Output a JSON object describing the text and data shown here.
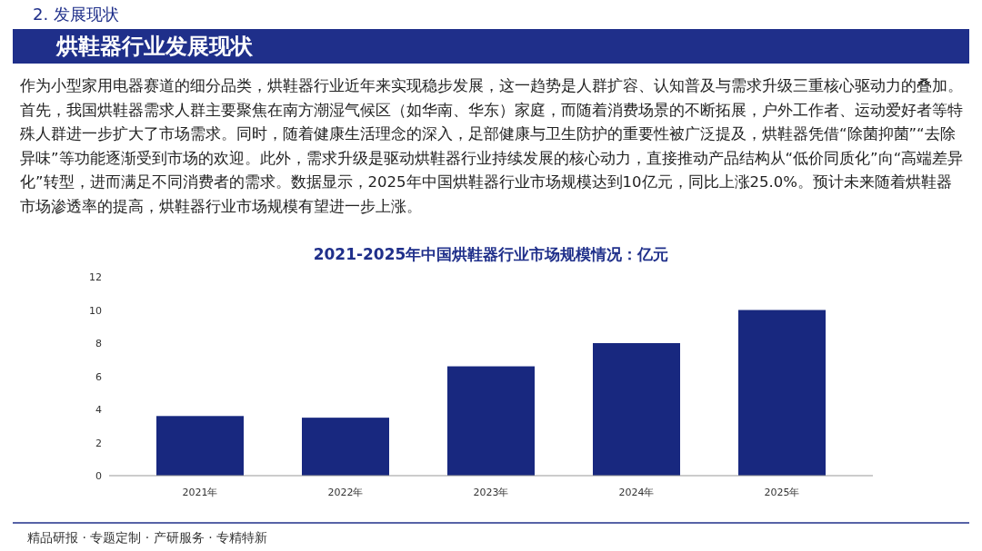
{
  "chart_data": {
    "type": "bar",
    "title": "2021-2025年中国烘鞋器行业市场规模情况：亿元",
    "categories": [
      "2021年",
      "2022年",
      "2023年",
      "2024年",
      "2025年"
    ],
    "values": [
      3.6,
      3.5,
      6.6,
      8,
      10
    ],
    "color": "#18287f",
    "ylim": [
      0,
      12
    ],
    "yticks": [
      0,
      2,
      4,
      6,
      8,
      10,
      12
    ],
    "grid": false,
    "annotations": [
      "2. 发展现状",
      "烘鞋器行业发展现状",
      "作为小型家用电器赛道的细分品类，烘鞋器行业近年来实现稳步发展，这一趋势是人群扩容、认知普及与需求升级三重核心驱动力的叠加。首先，我国烘鞋器需求人群主要聚焦在南方潮湿气候区（如华南、华东）家庭，而随着消费场景的不断拓展，户外工作者、运动爱好者等特殊人群进一步扩大了市场需求。同时，随着健康生活理念的深入，足部健康与卫生防护的重要性被广泛提及，烘鞋器凭借“除菌抑菌”“去除异味”等功能逐渐受到市场的欢迎。此外，需求升级是驱动烘鞋器行业持续发展的核心动力，直接推动产品结构从“低价同质化”向“高端差异化”转型，进而满足不同消费者的需求。数据显示，2025年中国烘鞋器行业市场规模达到10亿元，同比上涨25.0%。预计未来随着烘鞋器市场渗透率的提高，烘鞋器行业市场规模有望进一步上涨。",
      "精品研报 · 专题定制 · 产研服务 · 专精特新"
    ]
  }
}
